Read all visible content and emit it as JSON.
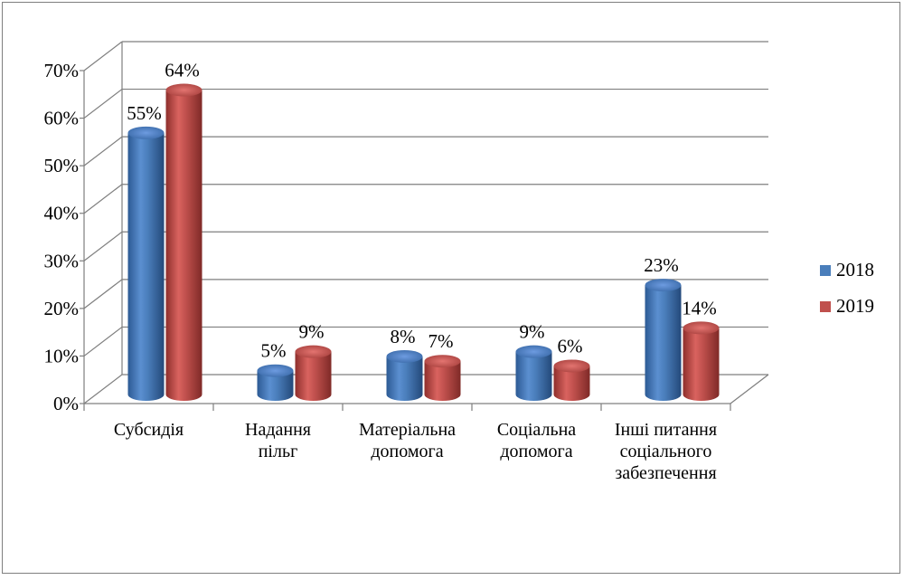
{
  "chart_data": {
    "type": "bar",
    "style": "3d-cylinder",
    "categories": [
      [
        "Субсидія"
      ],
      [
        "Надання",
        "пільг"
      ],
      [
        "Матеріальна",
        "допомога"
      ],
      [
        "Соціальна",
        "допомога"
      ],
      [
        "Інші питання",
        "соціального",
        "забезпечення"
      ]
    ],
    "series": [
      {
        "name": "2018",
        "values": [
          55,
          5,
          8,
          9,
          23
        ],
        "labels": [
          "55%",
          "5%",
          "8%",
          "9%",
          "23%"
        ],
        "color": "#4a7ebb"
      },
      {
        "name": "2019",
        "values": [
          64,
          9,
          7,
          6,
          14
        ],
        "labels": [
          "64%",
          "9%",
          "7%",
          "6%",
          "14%"
        ],
        "color": "#c0504d"
      }
    ],
    "y_ticks": [
      "0%",
      "10%",
      "20%",
      "30%",
      "40%",
      "50%",
      "60%",
      "70%"
    ],
    "ylim": [
      0,
      70
    ],
    "grid": true,
    "legend_position": "right"
  }
}
